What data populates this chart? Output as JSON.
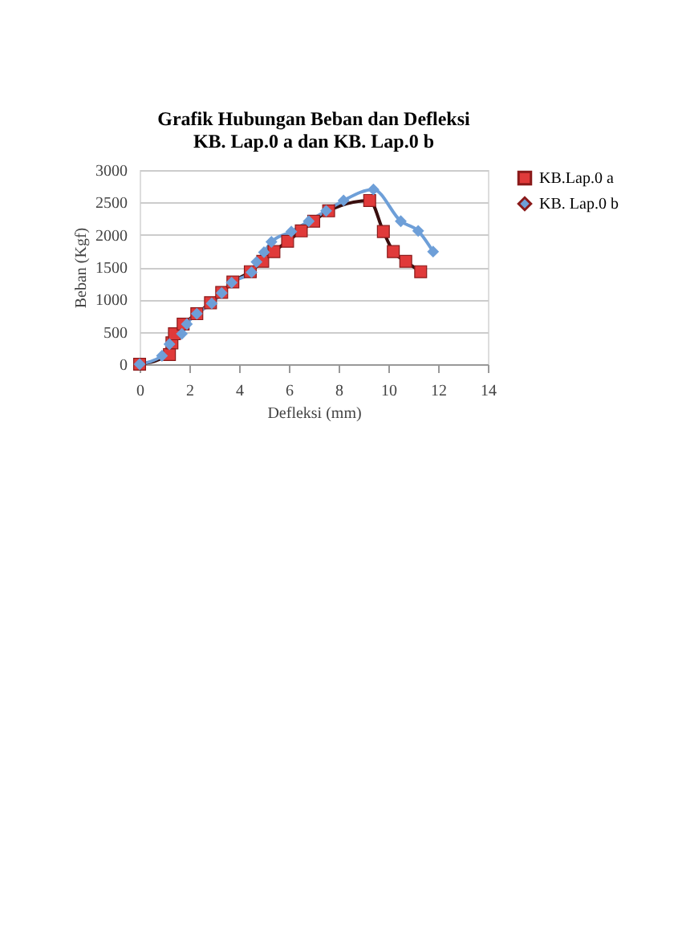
{
  "chart_data": {
    "type": "line",
    "title": "Grafik Hubungan Beban dan Defleksi\nKB. Lap.0 a dan KB. Lap.0 b",
    "xlabel": "Defleksi (mm)",
    "ylabel": "Beban (Kgf)",
    "xlim": [
      0,
      14
    ],
    "xticks": [
      0,
      2,
      4,
      6,
      8,
      10,
      12,
      14
    ],
    "ylim": [
      0,
      3000
    ],
    "yticks": [
      0,
      500,
      1000,
      1500,
      2000,
      2500,
      3000
    ],
    "grid": "y",
    "legend": "right",
    "line_style": "solid",
    "series": [
      {
        "name": "KB.Lap.0 a",
        "color": "#e03a3a",
        "marker": "square",
        "x": [
          0,
          1.2,
          1.3,
          1.4,
          1.75,
          2.3,
          2.85,
          3.3,
          3.75,
          4.45,
          4.95,
          5.4,
          5.95,
          6.5,
          7.0,
          7.6,
          9.25,
          9.8,
          10.2,
          10.7,
          11.3
        ],
        "values": [
          0,
          150,
          330,
          470,
          620,
          780,
          950,
          1110,
          1270,
          1430,
          1590,
          1740,
          1900,
          2060,
          2210,
          2370,
          2530,
          2050,
          1740,
          1590,
          1430
        ]
      },
      {
        "name": "KB. Lap.0 b",
        "color": "#6e9fd8",
        "marker": "diamond",
        "x": [
          0,
          0.9,
          1.2,
          1.7,
          1.9,
          2.3,
          2.9,
          3.3,
          3.7,
          4.5,
          4.7,
          5.0,
          5.3,
          6.1,
          6.8,
          7.5,
          8.2,
          9.4,
          10.5,
          11.2,
          11.8
        ],
        "values": [
          0,
          130,
          310,
          470,
          620,
          780,
          940,
          1100,
          1260,
          1420,
          1580,
          1730,
          1890,
          2050,
          2210,
          2370,
          2530,
          2700,
          2210,
          2060,
          1740
        ]
      }
    ]
  }
}
